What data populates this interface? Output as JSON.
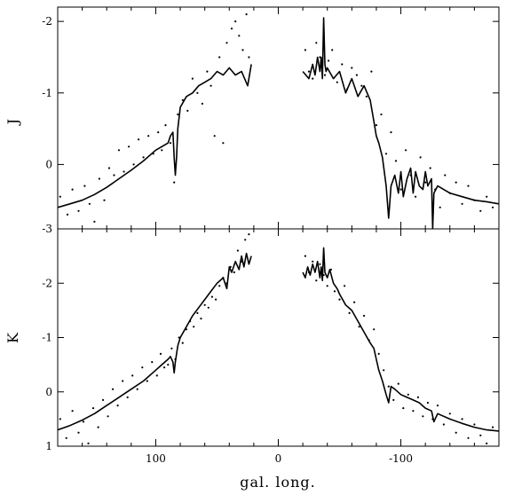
{
  "chart_data": [
    {
      "type": "line",
      "panel": "top",
      "ylabel": "J",
      "xlabel": "",
      "xlim": [
        180,
        -180
      ],
      "ylim": [
        0.9,
        -2.2
      ],
      "yreversed": true,
      "yticks": [
        -2,
        -1,
        0
      ],
      "ytick_labels": [
        "-2",
        "-1",
        "0"
      ],
      "series": [
        {
          "style": "line",
          "x": [
            180,
            170,
            160,
            150,
            140,
            130,
            120,
            110,
            100,
            95,
            90,
            88,
            86,
            85,
            84,
            83,
            82,
            80,
            75,
            70,
            65,
            60,
            55,
            50,
            45,
            40,
            35,
            30,
            25,
            22
          ],
          "y": [
            0.6,
            0.55,
            0.5,
            0.42,
            0.32,
            0.2,
            0.08,
            -0.05,
            -0.2,
            -0.25,
            -0.3,
            -0.4,
            -0.45,
            -0.1,
            0.15,
            -0.1,
            -0.5,
            -0.8,
            -0.95,
            -1.0,
            -1.1,
            -1.15,
            -1.2,
            -1.3,
            -1.25,
            -1.35,
            -1.25,
            -1.3,
            -1.1,
            -1.4
          ]
        },
        {
          "style": "line",
          "x": [
            -20,
            -25,
            -28,
            -30,
            -32,
            -34,
            -35,
            -36,
            -37,
            -38,
            -39,
            -40,
            -45,
            -50,
            -55,
            -60,
            -65,
            -70,
            -75,
            -78,
            -80,
            -82,
            -85,
            -88,
            -90,
            -92,
            -95,
            -98,
            -100,
            -102,
            -105,
            -108,
            -110,
            -112,
            -115,
            -118,
            -120,
            -122,
            -125,
            -126,
            -127,
            -130,
            -140,
            -150,
            -160,
            -170,
            -180
          ],
          "y": [
            -1.3,
            -1.2,
            -1.4,
            -1.25,
            -1.5,
            -1.3,
            -1.5,
            -1.2,
            -2.05,
            -1.4,
            -1.3,
            -1.35,
            -1.2,
            -1.3,
            -1.0,
            -1.2,
            -0.95,
            -1.1,
            -0.9,
            -0.6,
            -0.4,
            -0.3,
            -0.1,
            0.3,
            0.75,
            0.3,
            0.15,
            0.4,
            0.1,
            0.45,
            0.2,
            0.05,
            0.4,
            0.1,
            0.3,
            0.35,
            0.1,
            0.3,
            0.2,
            0.9,
            0.4,
            0.3,
            0.4,
            0.45,
            0.5,
            0.52,
            0.55
          ]
        },
        {
          "style": "scatter",
          "note": "scattered observations around the model curve",
          "x": [
            178,
            172,
            168,
            163,
            158,
            154,
            150,
            146,
            142,
            138,
            134,
            130,
            126,
            122,
            118,
            114,
            110,
            106,
            102,
            98,
            95,
            92,
            88,
            85,
            82,
            78,
            74,
            70,
            66,
            62,
            58,
            55,
            52,
            48,
            45,
            42,
            38,
            35,
            32,
            29,
            26,
            24,
            -22,
            -25,
            -28,
            -31,
            -34,
            -38,
            -41,
            -44,
            -48,
            -52,
            -56,
            -60,
            -64,
            -68,
            -72,
            -76,
            -80,
            -84,
            -88,
            -92,
            -96,
            -100,
            -104,
            -108,
            -112,
            -116,
            -120,
            -124,
            -128,
            -132,
            -136,
            -140,
            -145,
            -150,
            -155,
            -160,
            -165,
            -170,
            -175
          ],
          "y": [
            0.45,
            0.7,
            0.35,
            0.65,
            0.3,
            0.55,
            0.8,
            0.2,
            0.5,
            0.05,
            0.15,
            -0.2,
            0.1,
            -0.25,
            0.0,
            -0.35,
            -0.1,
            -0.4,
            -0.15,
            -0.45,
            -0.2,
            -0.55,
            -0.3,
            0.25,
            -0.7,
            -0.9,
            -0.75,
            -1.2,
            -1.0,
            -0.85,
            -1.3,
            -1.1,
            -0.4,
            -1.5,
            -0.3,
            -1.7,
            -1.9,
            -2.0,
            -1.8,
            -1.6,
            -2.1,
            -1.5,
            -1.6,
            -1.3,
            -1.2,
            -1.7,
            -1.5,
            -1.25,
            -1.45,
            -1.6,
            -1.15,
            -1.4,
            -1.05,
            -1.35,
            -1.25,
            -1.1,
            -0.95,
            -1.3,
            -0.55,
            -0.7,
            -0.15,
            -0.45,
            -0.05,
            0.35,
            -0.2,
            0.15,
            0.45,
            -0.1,
            0.25,
            0.05,
            0.35,
            0.6,
            0.15,
            0.4,
            0.25,
            0.55,
            0.3,
            0.5,
            0.65,
            0.45,
            0.6
          ]
        }
      ]
    },
    {
      "type": "line",
      "panel": "bottom",
      "ylabel": "K",
      "xlabel": "gal. long.",
      "xlim": [
        180,
        -180
      ],
      "ylim": [
        1.0,
        -3.0
      ],
      "yreversed": true,
      "xticks": [
        100,
        0,
        -100
      ],
      "xtick_labels": [
        "100",
        "0",
        "-100"
      ],
      "yticks": [
        -3,
        -2,
        -1,
        0,
        1
      ],
      "ytick_labels": [
        "-3",
        "-2",
        "-1",
        "0",
        "1"
      ],
      "series": [
        {
          "style": "line",
          "x": [
            180,
            170,
            160,
            150,
            140,
            130,
            120,
            110,
            100,
            95,
            90,
            88,
            86,
            85,
            84,
            83,
            82,
            80,
            75,
            70,
            65,
            60,
            55,
            50,
            45,
            42,
            40,
            38,
            35,
            32,
            30,
            28,
            26,
            24,
            22
          ],
          "y": [
            0.7,
            0.62,
            0.52,
            0.4,
            0.25,
            0.1,
            -0.05,
            -0.2,
            -0.4,
            -0.5,
            -0.6,
            -0.65,
            -0.55,
            -0.35,
            -0.55,
            -0.7,
            -0.85,
            -1.0,
            -1.2,
            -1.4,
            -1.55,
            -1.7,
            -1.85,
            -2.0,
            -2.1,
            -1.9,
            -2.3,
            -2.2,
            -2.4,
            -2.25,
            -2.5,
            -2.3,
            -2.55,
            -2.35,
            -2.5
          ]
        },
        {
          "style": "line",
          "x": [
            -20,
            -22,
            -24,
            -26,
            -28,
            -30,
            -32,
            -34,
            -35,
            -36,
            -37,
            -38,
            -40,
            -42,
            -45,
            -48,
            -50,
            -55,
            -60,
            -65,
            -70,
            -75,
            -78,
            -80,
            -82,
            -85,
            -88,
            -90,
            -92,
            -95,
            -100,
            -105,
            -110,
            -115,
            -120,
            -125,
            -127,
            -130,
            -140,
            -150,
            -160,
            -170,
            -180
          ],
          "y": [
            -2.2,
            -2.1,
            -2.3,
            -2.15,
            -2.35,
            -2.2,
            -2.4,
            -2.1,
            -2.3,
            -2.05,
            -2.65,
            -2.2,
            -2.1,
            -2.25,
            -2.0,
            -1.9,
            -1.8,
            -1.6,
            -1.5,
            -1.3,
            -1.1,
            -0.9,
            -0.8,
            -0.6,
            -0.4,
            -0.2,
            0.05,
            0.2,
            -0.1,
            -0.05,
            0.05,
            0.1,
            0.15,
            0.2,
            0.3,
            0.35,
            0.55,
            0.4,
            0.5,
            0.58,
            0.65,
            0.7,
            0.72
          ]
        },
        {
          "style": "scatter",
          "note": "scattered observations around the model curve",
          "x": [
            178,
            173,
            168,
            163,
            159,
            155,
            151,
            147,
            143,
            139,
            135,
            131,
            127,
            123,
            119,
            115,
            111,
            107,
            103,
            99,
            96,
            93,
            90,
            87,
            84,
            81,
            78,
            75,
            72,
            69,
            66,
            63,
            60,
            57,
            54,
            51,
            48,
            45,
            42,
            39,
            36,
            33,
            30,
            27,
            24,
            -22,
            -25,
            -28,
            -31,
            -34,
            -37,
            -40,
            -43,
            -46,
            -50,
            -54,
            -58,
            -62,
            -66,
            -70,
            -74,
            -78,
            -82,
            -86,
            -90,
            -94,
            -98,
            -102,
            -106,
            -110,
            -114,
            -118,
            -122,
            -126,
            -130,
            -135,
            -140,
            -145,
            -150,
            -155,
            -160,
            -165,
            -170,
            -175
          ],
          "y": [
            0.5,
            0.85,
            0.35,
            0.75,
            0.55,
            0.95,
            0.3,
            0.65,
            0.15,
            0.45,
            -0.05,
            0.25,
            -0.2,
            0.1,
            -0.3,
            -0.05,
            -0.45,
            -0.2,
            -0.55,
            -0.3,
            -0.7,
            -0.45,
            -0.5,
            -0.8,
            -0.6,
            -1.0,
            -0.9,
            -1.15,
            -1.3,
            -1.2,
            -1.45,
            -1.35,
            -1.6,
            -1.55,
            -1.75,
            -1.7,
            -1.95,
            -2.1,
            -2.0,
            -2.3,
            -2.2,
            -2.6,
            -2.4,
            -2.8,
            -2.9,
            -2.5,
            -2.2,
            -2.4,
            -2.05,
            -2.35,
            -2.15,
            -1.95,
            -2.25,
            -1.85,
            -1.7,
            -1.95,
            -1.45,
            -1.65,
            -1.2,
            -1.4,
            -0.95,
            -1.15,
            -0.7,
            -0.4,
            -0.1,
            0.15,
            -0.15,
            0.3,
            0.05,
            0.35,
            0.1,
            0.45,
            0.2,
            0.5,
            0.25,
            0.6,
            0.4,
            0.75,
            0.5,
            0.85,
            0.6,
            0.8,
            0.95,
            0.65
          ]
        }
      ]
    }
  ]
}
